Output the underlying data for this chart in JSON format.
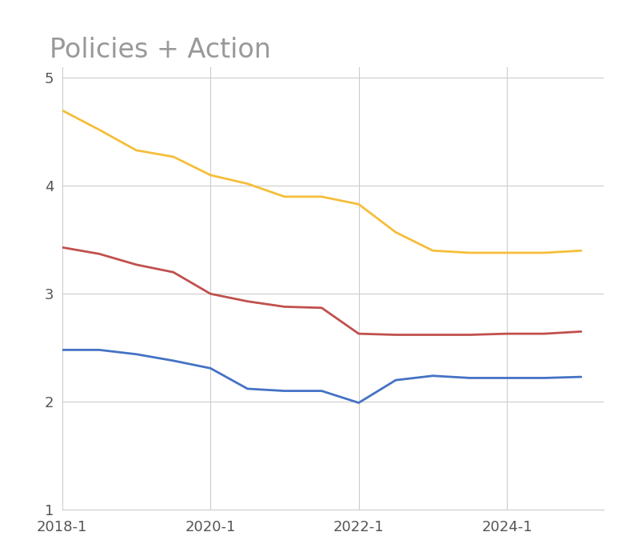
{
  "title": "Policies + Action",
  "title_color": "#999999",
  "title_fontsize": 24,
  "background_color": "#ffffff",
  "grid_color": "#cccccc",
  "xlim": [
    2018.0,
    2025.3
  ],
  "ylim": [
    1.0,
    5.1
  ],
  "yticks": [
    1,
    2,
    3,
    4,
    5
  ],
  "xtick_labels": [
    "2018-1",
    "2020-1",
    "2022-1",
    "2024-1"
  ],
  "xtick_positions": [
    2018.0,
    2020.0,
    2022.0,
    2024.0
  ],
  "yellow_line": {
    "x": [
      2018.0,
      2018.5,
      2019.0,
      2019.5,
      2020.0,
      2020.5,
      2021.0,
      2021.5,
      2022.0,
      2022.5,
      2023.0,
      2023.5,
      2024.0,
      2024.5,
      2025.0
    ],
    "y": [
      4.7,
      4.52,
      4.33,
      4.27,
      4.1,
      4.02,
      3.9,
      3.9,
      3.83,
      3.57,
      3.4,
      3.38,
      3.38,
      3.38,
      3.4
    ],
    "color": "#F5BE3A",
    "linewidth": 2.0
  },
  "red_line": {
    "x": [
      2018.0,
      2018.5,
      2019.0,
      2019.5,
      2020.0,
      2020.5,
      2021.0,
      2021.5,
      2022.0,
      2022.5,
      2023.0,
      2023.5,
      2024.0,
      2024.5,
      2025.0
    ],
    "y": [
      3.43,
      3.37,
      3.27,
      3.2,
      3.0,
      2.93,
      2.88,
      2.87,
      2.63,
      2.62,
      2.62,
      2.62,
      2.63,
      2.63,
      2.65
    ],
    "color": "#C0504D",
    "linewidth": 2.0
  },
  "blue_line": {
    "x": [
      2018.0,
      2018.5,
      2019.0,
      2019.5,
      2020.0,
      2020.5,
      2021.0,
      2021.5,
      2022.0,
      2022.5,
      2023.0,
      2023.5,
      2024.0,
      2024.5,
      2025.0
    ],
    "y": [
      2.48,
      2.48,
      2.44,
      2.38,
      2.31,
      2.12,
      2.1,
      2.1,
      1.99,
      2.2,
      2.24,
      2.22,
      2.22,
      2.22,
      2.23
    ],
    "color": "#4472C4",
    "linewidth": 2.0
  }
}
